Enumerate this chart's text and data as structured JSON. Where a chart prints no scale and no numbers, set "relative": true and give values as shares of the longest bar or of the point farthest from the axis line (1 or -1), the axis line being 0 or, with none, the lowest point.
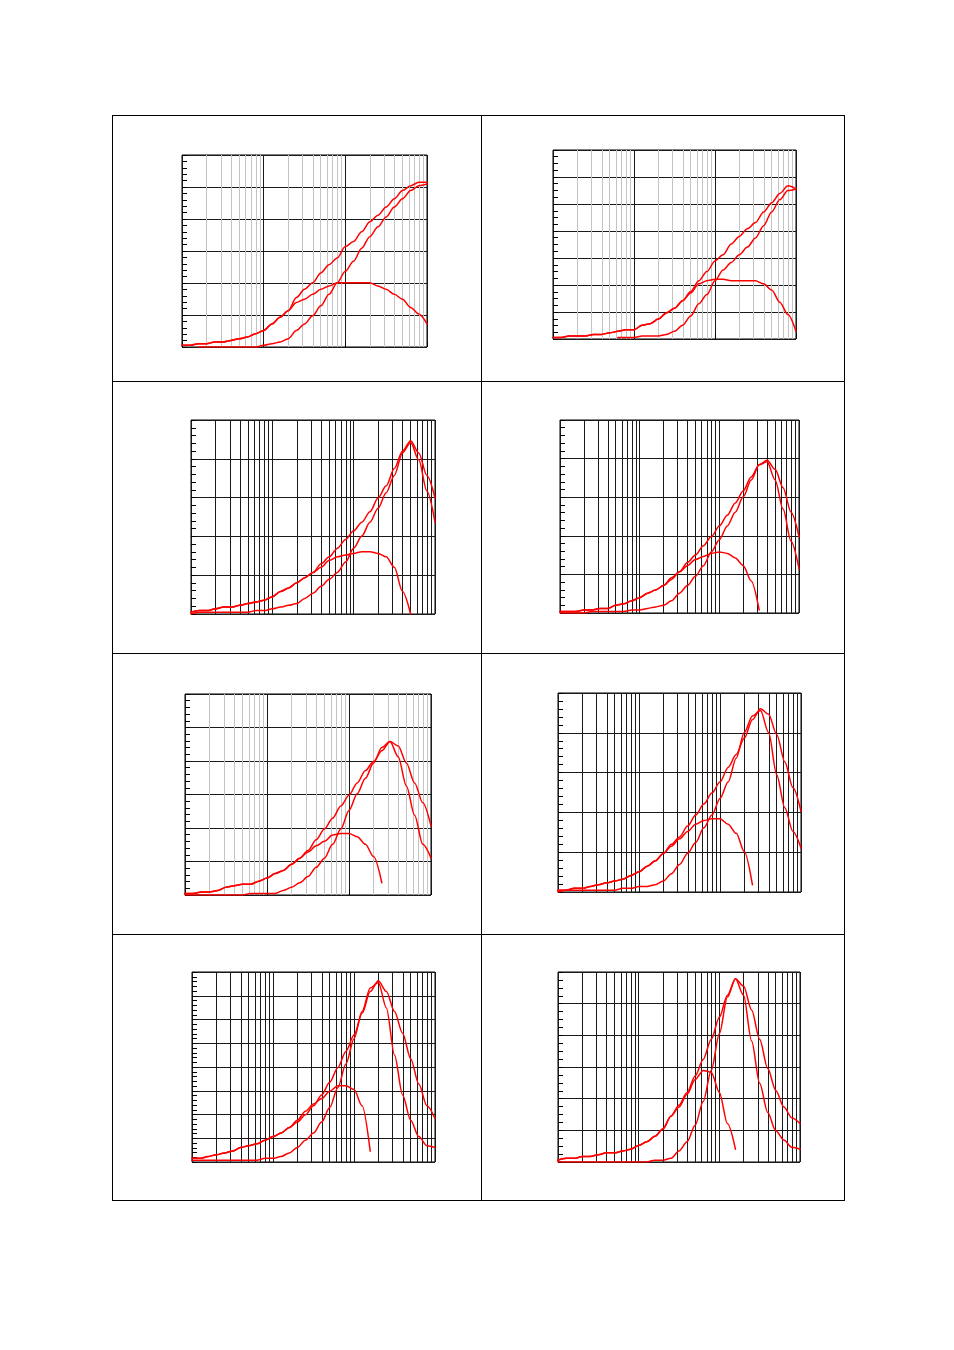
{
  "chart_data": [
    {
      "type": "line",
      "relative": true,
      "grid": true,
      "categories": [
        null,
        null,
        null,
        null,
        null,
        null,
        null,
        null,
        null,
        null,
        null,
        null,
        null,
        null,
        null,
        null,
        null,
        null,
        null,
        null,
        null,
        null,
        null,
        null,
        null,
        null,
        null,
        null,
        null,
        null,
        null
      ],
      "series": [
        {
          "color": "#ff0000",
          "values": [
            0.01,
            0.01,
            0.02,
            0.02,
            0.03,
            0.03,
            0.04,
            0.05,
            0.06,
            0.08,
            0.1,
            0.14,
            0.18,
            0.22,
            0.3,
            0.35,
            0.39,
            0.45,
            0.5,
            0.54,
            0.61,
            0.64,
            0.7,
            0.76,
            0.8,
            0.85,
            0.9,
            0.95,
            0.98,
            1.0,
            1.0
          ]
        },
        {
          "color": "#ff0000",
          "values": [
            null,
            null,
            0,
            0,
            0,
            0,
            0,
            0,
            0,
            0,
            0.01,
            0.02,
            0.03,
            0.05,
            0.1,
            0.14,
            0.19,
            0.25,
            0.32,
            0.39,
            0.46,
            0.52,
            0.6,
            0.67,
            0.73,
            0.79,
            0.85,
            0.9,
            0.95,
            0.98,
            0.99
          ]
        },
        {
          "color": "#ff0000",
          "values": [
            0.01,
            0.01,
            0.02,
            0.02,
            0.03,
            0.03,
            0.04,
            0.05,
            0.06,
            0.08,
            0.1,
            0.14,
            0.18,
            0.22,
            0.27,
            0.29,
            0.32,
            0.35,
            0.37,
            0.39,
            0.39,
            0.39,
            0.39,
            0.39,
            0.37,
            0.35,
            0.32,
            0.29,
            0.24,
            0.2,
            0.14
          ]
        }
      ]
    },
    {
      "type": "line",
      "relative": true,
      "grid": true,
      "categories": [
        null,
        null,
        null,
        null,
        null,
        null,
        null,
        null,
        null,
        null,
        null,
        null,
        null,
        null,
        null,
        null,
        null,
        null,
        null,
        null,
        null,
        null,
        null,
        null,
        null,
        null,
        null,
        null,
        null,
        null,
        null
      ],
      "series": [
        {
          "color": "#ff0000",
          "values": [
            0.01,
            0.01,
            0.02,
            0.02,
            0.02,
            0.03,
            0.03,
            0.04,
            0.05,
            0.06,
            0.06,
            0.09,
            0.1,
            0.13,
            0.17,
            0.2,
            0.25,
            0.31,
            0.38,
            0.44,
            0.51,
            0.55,
            0.62,
            0.67,
            0.72,
            0.76,
            0.83,
            0.89,
            0.95,
            1.0,
            0.98
          ]
        },
        {
          "color": "#ff0000",
          "values": [
            null,
            null,
            null,
            null,
            null,
            null,
            null,
            null,
            0.01,
            0.01,
            0.01,
            0.02,
            0.02,
            0.02,
            0.03,
            0.05,
            0.09,
            0.15,
            0.23,
            0.29,
            0.38,
            0.45,
            0.5,
            0.55,
            0.6,
            0.66,
            0.74,
            0.83,
            0.91,
            0.97,
            0.98
          ]
        },
        {
          "color": "#ff0000",
          "values": [
            0.01,
            0.01,
            0.02,
            0.02,
            0.02,
            0.03,
            0.03,
            0.04,
            0.05,
            0.06,
            0.06,
            0.09,
            0.1,
            0.13,
            0.17,
            0.2,
            0.25,
            0.3,
            0.36,
            0.38,
            0.39,
            0.39,
            0.38,
            0.38,
            0.38,
            0.38,
            0.36,
            0.32,
            0.24,
            0.16,
            0.05
          ]
        }
      ]
    },
    {
      "type": "line",
      "relative": true,
      "grid": true,
      "categories": [
        null,
        null,
        null,
        null,
        null,
        null,
        null,
        null,
        null,
        null,
        null,
        null,
        null,
        null,
        null,
        null,
        null,
        null,
        null,
        null,
        null,
        null,
        null,
        null,
        null,
        null,
        null,
        null,
        null,
        null,
        null
      ],
      "series": [
        {
          "color": "#ff0000",
          "values": [
            0.01,
            0.02,
            0.02,
            0.03,
            0.04,
            0.04,
            0.05,
            0.06,
            0.07,
            0.08,
            0.1,
            0.13,
            0.15,
            0.18,
            0.21,
            0.24,
            0.29,
            0.33,
            0.38,
            0.43,
            0.48,
            0.53,
            0.59,
            0.67,
            0.74,
            0.84,
            0.94,
            1.0,
            0.93,
            0.8,
            0.67
          ]
        },
        {
          "color": "#ff0000",
          "values": [
            0,
            0.01,
            0.01,
            0.01,
            0.01,
            0.01,
            0.01,
            0.01,
            0.02,
            0.02,
            0.03,
            0.04,
            0.05,
            0.06,
            0.09,
            0.12,
            0.16,
            0.2,
            0.24,
            0.3,
            0.38,
            0.45,
            0.53,
            0.61,
            0.7,
            0.8,
            0.93,
            0.99,
            0.89,
            0.71,
            0.53
          ]
        },
        {
          "color": "#ff0000",
          "values": [
            0.01,
            0.02,
            0.02,
            0.03,
            0.04,
            0.04,
            0.05,
            0.06,
            0.07,
            0.08,
            0.1,
            0.13,
            0.15,
            0.18,
            0.21,
            0.24,
            0.27,
            0.31,
            0.33,
            0.34,
            0.35,
            0.36,
            0.36,
            0.35,
            0.33,
            0.27,
            0.13,
            0,
            null,
            null,
            null
          ]
        }
      ]
    },
    {
      "type": "line",
      "relative": true,
      "grid": true,
      "categories": [
        null,
        null,
        null,
        null,
        null,
        null,
        null,
        null,
        null,
        null,
        null,
        null,
        null,
        null,
        null,
        null,
        null,
        null,
        null,
        null,
        null,
        null,
        null,
        null,
        null,
        null,
        null,
        null,
        null,
        null,
        null
      ],
      "series": [
        {
          "color": "#ff0000",
          "values": [
            0.01,
            0.01,
            0.01,
            0.02,
            0.02,
            0.03,
            0.03,
            0.05,
            0.06,
            0.08,
            0.1,
            0.13,
            0.15,
            0.18,
            0.23,
            0.27,
            0.33,
            0.38,
            0.44,
            0.5,
            0.57,
            0.64,
            0.72,
            0.8,
            0.89,
            0.97,
            1.0,
            0.94,
            0.82,
            0.66,
            0.5
          ]
        },
        {
          "color": "#ff0000",
          "values": [
            0,
            0,
            0,
            0,
            0.01,
            0.01,
            0.01,
            0.01,
            0.01,
            0.02,
            0.02,
            0.03,
            0.04,
            0.05,
            0.08,
            0.13,
            0.18,
            0.24,
            0.31,
            0.4,
            0.48,
            0.57,
            0.66,
            0.76,
            0.87,
            0.97,
            0.99,
            0.87,
            0.68,
            0.47,
            0.29
          ]
        },
        {
          "color": "#ff0000",
          "values": [
            0.01,
            0.01,
            0.01,
            0.02,
            0.02,
            0.03,
            0.03,
            0.05,
            0.06,
            0.08,
            0.1,
            0.13,
            0.15,
            0.18,
            0.22,
            0.27,
            0.31,
            0.35,
            0.37,
            0.39,
            0.4,
            0.39,
            0.36,
            0.31,
            0.21,
            0.02,
            null,
            null,
            null,
            null,
            null
          ]
        }
      ]
    },
    {
      "type": "line",
      "relative": true,
      "grid": true,
      "categories": [
        null,
        null,
        null,
        null,
        null,
        null,
        null,
        null,
        null,
        null,
        null,
        null,
        null,
        null,
        null,
        null,
        null,
        null,
        null,
        null,
        null,
        null,
        null,
        null,
        null,
        null,
        null,
        null,
        null,
        null,
        null
      ],
      "series": [
        {
          "color": "#ff0000",
          "values": [
            0.01,
            0.01,
            0.02,
            0.02,
            0.03,
            0.05,
            0.06,
            0.07,
            0.07,
            0.09,
            0.11,
            0.14,
            0.16,
            0.2,
            0.24,
            0.29,
            0.36,
            0.43,
            0.5,
            0.58,
            0.65,
            0.73,
            0.81,
            0.87,
            0.94,
            1.0,
            0.97,
            0.86,
            0.73,
            0.6,
            0.45
          ]
        },
        {
          "color": "#ff0000",
          "values": [
            0,
            0,
            0,
            0,
            0,
            0,
            0,
            0,
            0.01,
            0.01,
            0.01,
            0.01,
            0.03,
            0.05,
            0.08,
            0.12,
            0.18,
            0.24,
            0.33,
            0.43,
            0.55,
            0.66,
            0.76,
            0.86,
            0.96,
            1.0,
            0.9,
            0.71,
            0.52,
            0.33,
            0.24
          ]
        },
        {
          "color": "#ff0000",
          "values": [
            0.01,
            0.01,
            0.02,
            0.02,
            0.03,
            0.05,
            0.06,
            0.07,
            0.07,
            0.09,
            0.11,
            0.14,
            0.16,
            0.2,
            0.24,
            0.28,
            0.32,
            0.35,
            0.39,
            0.4,
            0.4,
            0.38,
            0.33,
            0.25,
            0.08,
            null,
            null,
            null,
            null,
            null,
            null
          ]
        }
      ]
    },
    {
      "type": "line",
      "relative": true,
      "grid": true,
      "categories": [
        null,
        null,
        null,
        null,
        null,
        null,
        null,
        null,
        null,
        null,
        null,
        null,
        null,
        null,
        null,
        null,
        null,
        null,
        null,
        null,
        null,
        null,
        null,
        null,
        null,
        null,
        null,
        null,
        null,
        null,
        null
      ],
      "series": [
        {
          "color": "#ff0000",
          "values": [
            0.01,
            0.01,
            0.02,
            0.02,
            0.03,
            0.04,
            0.05,
            0.06,
            0.07,
            0.09,
            0.11,
            0.14,
            0.17,
            0.21,
            0.26,
            0.3,
            0.36,
            0.42,
            0.48,
            0.54,
            0.6,
            0.68,
            0.75,
            0.84,
            0.94,
            1.0,
            0.97,
            0.86,
            0.71,
            0.57,
            0.44
          ]
        },
        {
          "color": "#ff0000",
          "values": [
            0,
            0.01,
            0.01,
            0.01,
            0.01,
            0.01,
            0.01,
            0.01,
            0.02,
            0.02,
            0.03,
            0.03,
            0.04,
            0.06,
            0.1,
            0.15,
            0.21,
            0.27,
            0.35,
            0.42,
            0.51,
            0.6,
            0.73,
            0.87,
            0.96,
            0.99,
            0.87,
            0.64,
            0.46,
            0.33,
            0.24
          ]
        },
        {
          "color": "#ff0000",
          "values": [
            0.01,
            0.01,
            0.02,
            0.02,
            0.03,
            0.04,
            0.05,
            0.06,
            0.07,
            0.09,
            0.11,
            0.14,
            0.17,
            0.21,
            0.25,
            0.29,
            0.33,
            0.37,
            0.39,
            0.4,
            0.4,
            0.37,
            0.32,
            0.22,
            0.04,
            null,
            null,
            null,
            null,
            null,
            null
          ]
        }
      ]
    },
    {
      "type": "line",
      "relative": true,
      "grid": true,
      "categories": [
        null,
        null,
        null,
        null,
        null,
        null,
        null,
        null,
        null,
        null,
        null,
        null,
        null,
        null,
        null,
        null,
        null,
        null,
        null,
        null,
        null,
        null,
        null,
        null,
        null,
        null,
        null,
        null,
        null,
        null,
        null
      ],
      "series": [
        {
          "color": "#ff0000",
          "values": [
            0.02,
            0.02,
            0.03,
            0.04,
            0.05,
            0.06,
            0.08,
            0.09,
            0.1,
            0.12,
            0.14,
            0.16,
            0.19,
            0.22,
            0.26,
            0.31,
            0.37,
            0.44,
            0.52,
            0.61,
            0.7,
            0.82,
            0.94,
            1.0,
            0.94,
            0.83,
            0.71,
            0.57,
            0.43,
            0.31,
            0.24
          ]
        },
        {
          "color": "#ff0000",
          "values": [
            0.01,
            0.01,
            0.01,
            0.01,
            0.01,
            0.01,
            0.01,
            0.01,
            0.01,
            0.02,
            0.02,
            0.03,
            0.05,
            0.08,
            0.12,
            0.16,
            0.22,
            0.3,
            0.41,
            0.54,
            0.68,
            0.83,
            0.96,
            0.99,
            0.85,
            0.59,
            0.37,
            0.23,
            0.14,
            0.09,
            0.08
          ]
        },
        {
          "color": "#ff0000",
          "values": [
            0.02,
            0.02,
            0.03,
            0.04,
            0.05,
            0.06,
            0.08,
            0.09,
            0.1,
            0.12,
            0.14,
            0.16,
            0.19,
            0.23,
            0.28,
            0.32,
            0.35,
            0.39,
            0.42,
            0.42,
            0.4,
            0.31,
            0.06,
            null,
            null,
            null,
            null,
            null,
            null,
            null,
            null
          ]
        }
      ]
    },
    {
      "type": "line",
      "relative": true,
      "grid": true,
      "categories": [
        null,
        null,
        null,
        null,
        null,
        null,
        null,
        null,
        null,
        null,
        null,
        null,
        null,
        null,
        null,
        null,
        null,
        null,
        null,
        null,
        null,
        null,
        null,
        null,
        null,
        null,
        null,
        null,
        null,
        null,
        null
      ],
      "series": [
        {
          "color": "#ff0000",
          "values": [
            0.01,
            0.02,
            0.02,
            0.03,
            0.03,
            0.04,
            0.05,
            0.05,
            0.06,
            0.07,
            0.09,
            0.11,
            0.14,
            0.18,
            0.25,
            0.31,
            0.38,
            0.47,
            0.56,
            0.67,
            0.79,
            0.91,
            1.0,
            0.96,
            0.83,
            0.67,
            0.51,
            0.39,
            0.3,
            0.24,
            0.21
          ]
        },
        {
          "color": "#ff0000",
          "values": [
            0,
            0,
            0,
            0,
            0,
            0,
            0,
            0,
            0,
            0,
            0,
            0,
            0.01,
            0.01,
            0.02,
            0.06,
            0.11,
            0.2,
            0.33,
            0.5,
            0.7,
            0.9,
            1.0,
            0.91,
            0.66,
            0.43,
            0.27,
            0.17,
            0.12,
            0.08,
            0.07
          ]
        },
        {
          "color": "#ff0000",
          "values": [
            0.01,
            0.02,
            0.02,
            0.03,
            0.03,
            0.04,
            0.05,
            0.05,
            0.06,
            0.07,
            0.09,
            0.11,
            0.14,
            0.18,
            0.25,
            0.3,
            0.37,
            0.45,
            0.5,
            0.49,
            0.38,
            0.21,
            0.07,
            null,
            null,
            null,
            null,
            null,
            null,
            null,
            null
          ]
        }
      ]
    }
  ]
}
